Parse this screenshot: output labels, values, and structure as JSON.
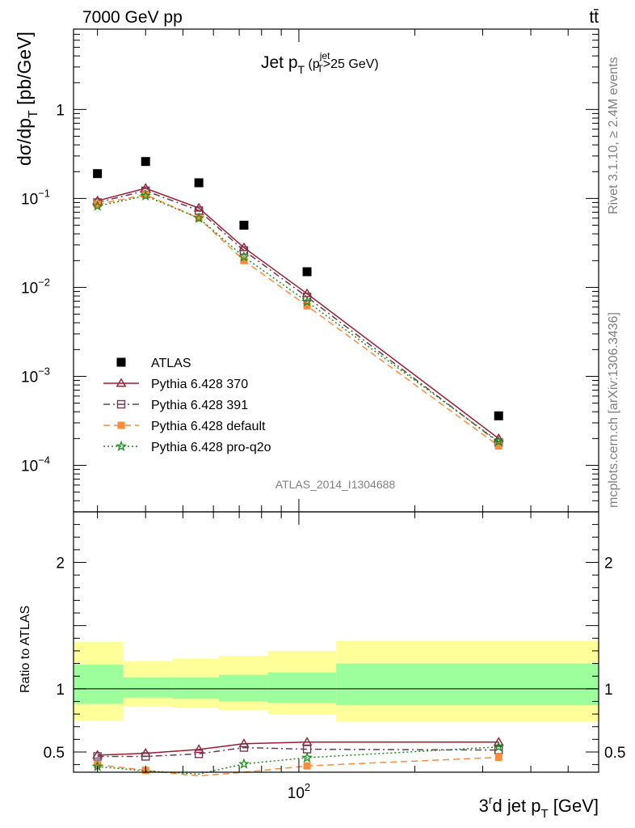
{
  "header": {
    "left": "7000 GeV pp",
    "right": "tt̄"
  },
  "side_text": {
    "top": "Rivet 3.1.10, ≥ 2.4M events",
    "bottom": "mcplots.cern.ch [arXiv:1306.3436]"
  },
  "colors": {
    "atlas": "#000000",
    "p370": "#9b1b30",
    "p391": "#6e3a52",
    "pdefault": "#ff8c3a",
    "pq2o": "#1a8c1a",
    "band_inner": "#9cff9c",
    "band_outer": "#ffff99"
  },
  "chart_data": [
    {
      "type": "scatter",
      "panel": "main",
      "title": "Jet p_T (p_T^jet>25 GeV)",
      "title_text": {
        "main": "Jet p",
        "sub1": "T",
        "open": " (p",
        "sup": "jet",
        "sub2": "T",
        "tail": ">25 GeV)"
      },
      "ylabel": "dσ/dp_T [pb/GeV]",
      "ylabel_text": {
        "main": "dσ/dp",
        "sub": "T",
        "tail": " [pb/GeV]"
      },
      "yscale": "log",
      "xscale": "log",
      "xlim": [
        26,
        600
      ],
      "ylim": [
        3e-05,
        8
      ],
      "y_ticks": [
        {
          "v": 1,
          "label": "1"
        },
        {
          "v": 0.1,
          "label": "10",
          "exp": "−1"
        },
        {
          "v": 0.01,
          "label": "10",
          "exp": "−2"
        },
        {
          "v": 0.001,
          "label": "10",
          "exp": "−3"
        },
        {
          "v": 0.0001,
          "label": "10",
          "exp": "−4"
        }
      ],
      "watermark": "ATLAS_2014_I1304688",
      "legend_placement": "lower-left",
      "series": [
        {
          "name": "ATLAS",
          "marker": "square-filled",
          "color": "#000000",
          "x": [
            30,
            40,
            55,
            72,
            105,
            330
          ],
          "y": [
            0.19,
            0.26,
            0.15,
            0.05,
            0.015,
            0.00036
          ]
        },
        {
          "name": "Pythia 6.428 370",
          "marker": "triangle-open",
          "line": "solid",
          "color": "#9b1b30",
          "x": [
            30,
            40,
            55,
            72,
            105,
            330
          ],
          "y": [
            0.094,
            0.13,
            0.078,
            0.028,
            0.0085,
            0.0002
          ]
        },
        {
          "name": "Pythia 6.428 391",
          "marker": "square-open",
          "line": "dashdot",
          "color": "#6e3a52",
          "x": [
            30,
            40,
            55,
            72,
            105,
            330
          ],
          "y": [
            0.09,
            0.122,
            0.073,
            0.026,
            0.0078,
            0.00018
          ]
        },
        {
          "name": "Pythia 6.428 default",
          "marker": "square-filled",
          "line": "dashed",
          "color": "#ff8c3a",
          "x": [
            30,
            40,
            55,
            72,
            105,
            330
          ],
          "y": [
            0.086,
            0.11,
            0.06,
            0.02,
            0.0062,
            0.000165
          ]
        },
        {
          "name": "Pythia 6.428 pro-q2o",
          "marker": "star",
          "line": "dotted",
          "color": "#1a8c1a",
          "x": [
            30,
            40,
            55,
            72,
            105,
            330
          ],
          "y": [
            0.082,
            0.107,
            0.06,
            0.022,
            0.0069,
            0.000185
          ]
        }
      ]
    },
    {
      "type": "line",
      "panel": "ratio",
      "ylabel": "Ratio to ATLAS",
      "xlabel": "3^rd jet p_T [GeV]",
      "xlabel_text": {
        "pre": "3",
        "sup": "r",
        "mid": "d jet p",
        "sub": "T",
        "tail": " [GeV]"
      },
      "xscale": "log",
      "xlim": [
        26,
        600
      ],
      "ylim": [
        0.34,
        2.4
      ],
      "x_ticks": [
        {
          "v": 100,
          "label": "10",
          "exp": "2"
        }
      ],
      "y_ticks": [
        {
          "v": 0.5,
          "label": "0.5"
        },
        {
          "v": 1,
          "label": "1"
        },
        {
          "v": 2,
          "label": "2"
        }
      ],
      "reference": 1,
      "bands": {
        "x_edges": [
          26,
          35,
          47,
          62,
          83,
          125,
          600
        ],
        "inner": [
          [
            0.88,
            1.19
          ],
          [
            0.93,
            1.09
          ],
          [
            0.92,
            1.09
          ],
          [
            0.9,
            1.11
          ],
          [
            0.89,
            1.13
          ],
          [
            0.87,
            1.2
          ]
        ],
        "outer": [
          [
            0.75,
            1.37
          ],
          [
            0.86,
            1.22
          ],
          [
            0.85,
            1.24
          ],
          [
            0.83,
            1.26
          ],
          [
            0.8,
            1.3
          ],
          [
            0.74,
            1.38
          ]
        ]
      },
      "series": [
        {
          "name": "Pythia 6.428 370",
          "marker": "triangle-open",
          "line": "solid",
          "color": "#9b1b30",
          "x": [
            30,
            40,
            55,
            72,
            105,
            330
          ],
          "y": [
            0.475,
            0.49,
            0.52,
            0.565,
            0.578,
            0.578
          ]
        },
        {
          "name": "Pythia 6.428 391",
          "marker": "square-open",
          "line": "dashdot",
          "color": "#6e3a52",
          "x": [
            30,
            40,
            55,
            72,
            105,
            330
          ],
          "y": [
            0.465,
            0.465,
            0.485,
            0.535,
            0.522,
            0.515
          ]
        },
        {
          "name": "Pythia 6.428 default",
          "marker": "square-filled",
          "line": "dashed",
          "color": "#ff8c3a",
          "x": [
            30,
            40,
            55,
            72,
            105,
            330
          ],
          "y": [
            0.4,
            0.355,
            0.31,
            0.34,
            0.39,
            0.458
          ]
        },
        {
          "name": "Pythia 6.428 pro-q2o",
          "marker": "star",
          "line": "dotted",
          "color": "#1a8c1a",
          "x": [
            30,
            40,
            55,
            72,
            105,
            330
          ],
          "y": [
            0.385,
            0.35,
            0.325,
            0.405,
            0.455,
            0.54
          ]
        }
      ]
    }
  ]
}
